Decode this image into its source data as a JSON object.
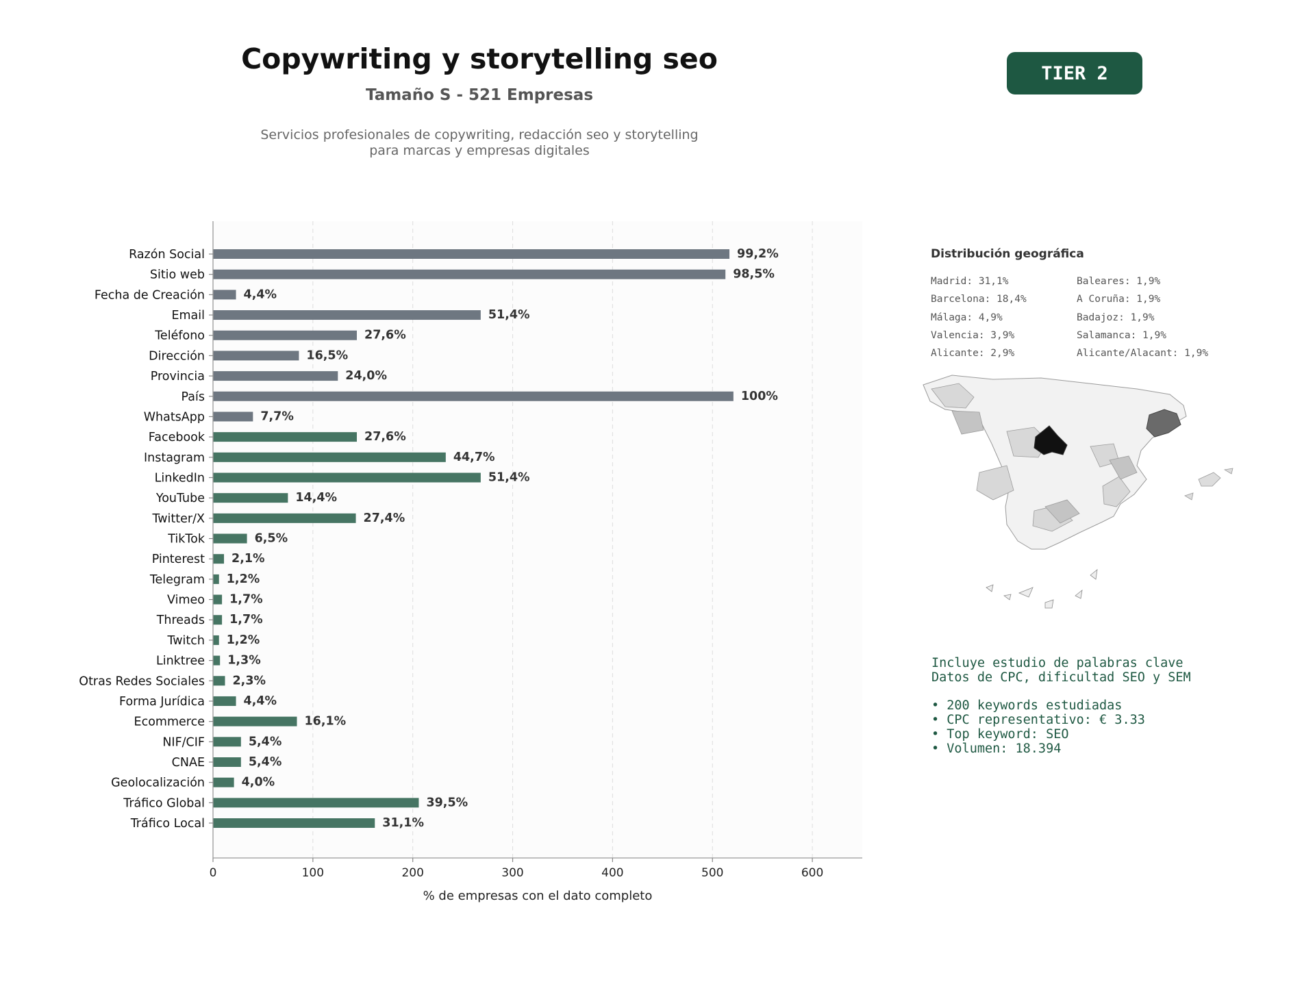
{
  "header": {
    "title": "Copywriting y storytelling seo",
    "subtitle": "Tamaño S - 521 Empresas",
    "description_line1": "Servicios profesionales de copywriting, redacción seo y storytelling",
    "description_line2": "para marcas y empresas digitales",
    "tier_label": "TIER 2"
  },
  "chart_data": {
    "type": "bar",
    "orientation": "horizontal",
    "xlabel": "% de empresas con el dato completo",
    "xlim": [
      0,
      650
    ],
    "xticks": [
      0,
      100,
      200,
      300,
      400,
      500,
      600
    ],
    "grid": "vertical-dashed",
    "categories": [
      "Razón Social",
      "Sitio web",
      "Fecha de Creación",
      "Email",
      "Teléfono",
      "Dirección",
      "Provincia",
      "País",
      "WhatsApp",
      "Facebook",
      "Instagram",
      "LinkedIn",
      "YouTube",
      "Twitter/X",
      "TikTok",
      "Pinterest",
      "Telegram",
      "Vimeo",
      "Threads",
      "Twitch",
      "Linktree",
      "Otras Redes Sociales",
      "Forma Jurídica",
      "Ecommerce",
      "NIF/CIF",
      "CNAE",
      "Geolocalización",
      "Tráfico Global",
      "Tráfico Local"
    ],
    "values": [
      517,
      513,
      23,
      268,
      144,
      86,
      125,
      521,
      40,
      144,
      233,
      268,
      75,
      143,
      34,
      11,
      6,
      9,
      9,
      6,
      7,
      12,
      23,
      84,
      28,
      28,
      21,
      206,
      162
    ],
    "value_labels": [
      "99,2%",
      "98,5%",
      "4,4%",
      "51,4%",
      "27,6%",
      "16,5%",
      "24,0%",
      "100%",
      "7,7%",
      "27,6%",
      "44,7%",
      "51,4%",
      "14,4%",
      "27,4%",
      "6,5%",
      "2,1%",
      "1,2%",
      "1,7%",
      "1,7%",
      "1,2%",
      "1,3%",
      "2,3%",
      "4,4%",
      "16,1%",
      "5,4%",
      "5,4%",
      "4,0%",
      "39,5%",
      "31,1%"
    ],
    "group_colors": {
      "basic": "#6e7781",
      "advanced": "#467563"
    },
    "basic_count": 9
  },
  "geo": {
    "title": "Distribución geográfica",
    "col1": [
      "Madrid: 31,1%",
      "Barcelona: 18,4%",
      "Málaga: 4,9%",
      "Valencia: 3,9%",
      "Alicante: 2,9%"
    ],
    "col2": [
      "Baleares: 1,9%",
      "A Coruña: 1,9%",
      "Badajoz: 1,9%",
      "Salamanca: 1,9%",
      "Alicante/Alacant: 1,9%"
    ]
  },
  "keywords": {
    "line1": "Incluye estudio de palabras clave",
    "line2": "Datos de CPC, dificultad SEO y SEM",
    "bullet1": "• 200 keywords estudiadas",
    "bullet2": "• CPC representativo: € 3.33",
    "bullet3": "• Top keyword: SEO",
    "bullet4": "• Volumen: 18.394"
  }
}
